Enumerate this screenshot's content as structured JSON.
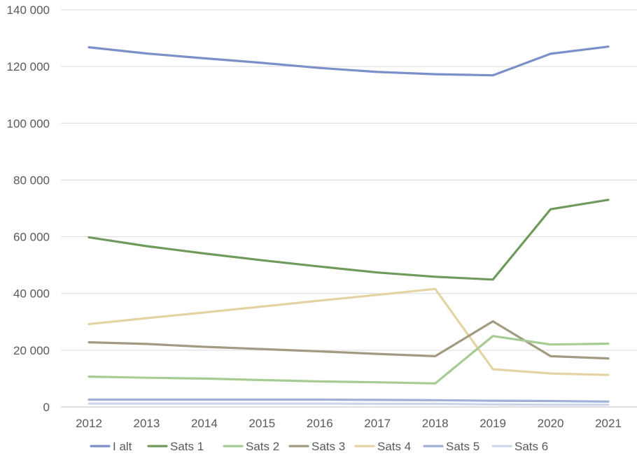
{
  "chart_data": {
    "type": "line",
    "title": "",
    "xlabel": "",
    "ylabel": "",
    "categories": [
      "2012",
      "2013",
      "2014",
      "2015",
      "2016",
      "2017",
      "2018",
      "2019",
      "2020",
      "2021"
    ],
    "ylim": [
      0,
      140000
    ],
    "yticks": [
      0,
      20000,
      40000,
      60000,
      80000,
      100000,
      120000,
      140000
    ],
    "ytick_labels": [
      "0",
      "20 000",
      "40 000",
      "60 000",
      "80 000",
      "100 000",
      "120 000",
      "140 000"
    ],
    "grid": true,
    "legend_position": "bottom",
    "series": [
      {
        "name": "I alt",
        "color": "#7b8fc8",
        "values": [
          126800,
          124600,
          122900,
          121300,
          119500,
          118100,
          117300,
          116900,
          124500,
          127000
        ]
      },
      {
        "name": "Sats 1",
        "color": "#6f9a5c",
        "values": [
          59800,
          56700,
          54100,
          51700,
          49500,
          47400,
          45900,
          44900,
          69700,
          73000
        ]
      },
      {
        "name": "Sats 2",
        "color": "#a6cc94",
        "values": [
          10700,
          10300,
          10000,
          9500,
          9000,
          8700,
          8300,
          25000,
          22000,
          22300
        ]
      },
      {
        "name": "Sats 3",
        "color": "#a39a82",
        "values": [
          22800,
          22200,
          21200,
          20400,
          19600,
          18700,
          17900,
          30200,
          17900,
          17100
        ]
      },
      {
        "name": "Sats 4",
        "color": "#e4d3a3",
        "values": [
          29200,
          31300,
          33300,
          35400,
          37500,
          39500,
          41600,
          13300,
          11800,
          11300
        ]
      },
      {
        "name": "Sats 5",
        "color": "#9fb1d6",
        "values": [
          2600,
          2600,
          2600,
          2600,
          2600,
          2500,
          2400,
          2200,
          2100,
          1900
        ]
      },
      {
        "name": "Sats 6",
        "color": "#cdd6ea",
        "values": [
          1200,
          1200,
          1200,
          1200,
          1200,
          1100,
          1100,
          900,
          800,
          800
        ]
      }
    ]
  }
}
